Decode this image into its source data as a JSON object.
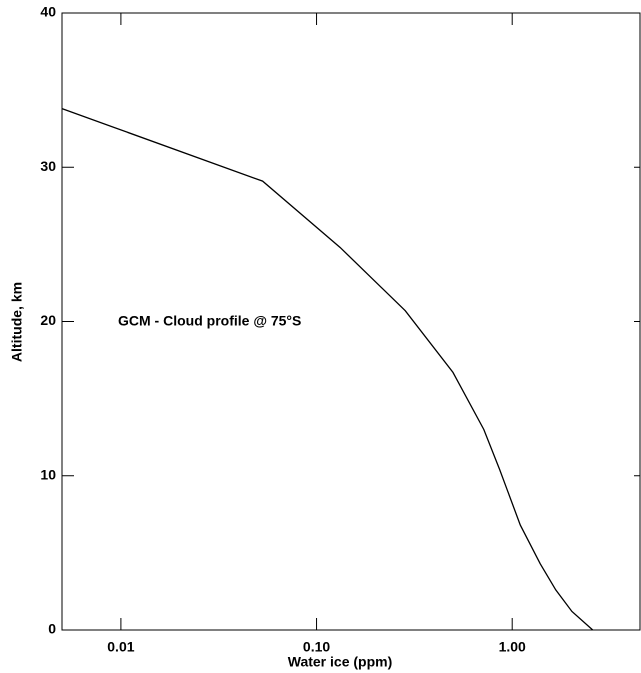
{
  "chart_data": {
    "type": "line",
    "xlabel": "Water ice (ppm)",
    "ylabel": "Altitude, km",
    "annotation": "GCM - Cloud profile @ 75°S",
    "x": [
      0.005,
      0.053,
      0.132,
      0.284,
      0.498,
      0.716,
      0.863,
      1.1,
      1.39,
      1.67,
      2.02,
      2.58
    ],
    "series": [
      {
        "color": "#000000",
        "values": [
          33.8,
          29.1,
          24.8,
          20.7,
          16.7,
          13.0,
          10.4,
          6.8,
          4.3,
          2.6,
          1.2,
          0
        ]
      }
    ],
    "xscale": "log",
    "xlim": [
      0.005,
      4.5
    ],
    "xticks": [
      0.01,
      {
        "value": 0.1,
        "label": "0.10"
      },
      {
        "value": 1,
        "label": "1.00"
      }
    ],
    "ylim": [
      0,
      40
    ],
    "yticks": [
      0,
      10,
      20,
      30,
      40
    ]
  }
}
